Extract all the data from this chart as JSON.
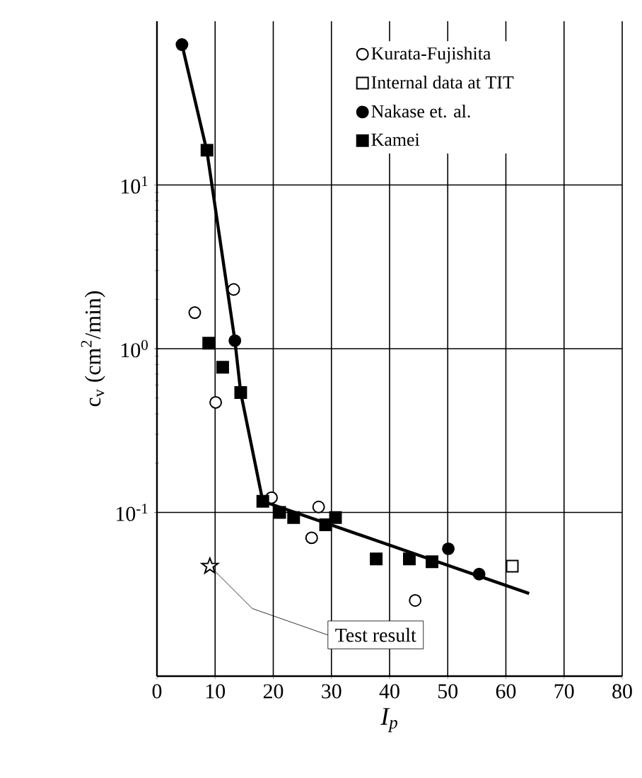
{
  "chart_data": {
    "type": "scatter",
    "xlabel": "I$_{p}$",
    "ylabel": "c$_{v}$ (cm$^{2}$/min)",
    "log": "y",
    "grid": true,
    "legend": "top right",
    "xlim": [
      0,
      80
    ],
    "xticks": [
      0,
      10,
      20,
      30,
      40,
      50,
      60,
      70,
      80
    ],
    "ylim": [
      0.01,
      100
    ],
    "yticks": [
      {
        "value": 0.1,
        "label": "10$^{-1}$"
      },
      {
        "value": 1,
        "label": "10$^{0}$"
      },
      {
        "value": 10,
        "label": "10$^{1}$"
      }
    ],
    "series": [
      {
        "name": "Kurata-Fujishita",
        "color": "#ffffff",
        "marker": "circle",
        "x": [
          13.2,
          6.5,
          10.1,
          19.7,
          27.8,
          26.6,
          44.4
        ],
        "values": [
          2.3,
          1.66,
          0.47,
          0.123,
          0.108,
          0.07,
          0.029
        ]
      },
      {
        "name": "Internal data at TIT",
        "color": "#ffffff",
        "marker": "square",
        "x": [
          61.1
        ],
        "values": [
          0.047
        ]
      },
      {
        "name": "Nakase et. al.",
        "color": "#000000",
        "marker": "circle",
        "x": [
          4.3,
          13.4,
          50.1,
          55.4
        ],
        "values": [
          72,
          1.12,
          0.06,
          0.042
        ]
      },
      {
        "name": "Kamei",
        "color": "#000000",
        "marker": "square",
        "x": [
          8.6,
          8.9,
          11.3,
          14.4,
          18.2,
          21.1,
          23.5,
          29,
          30.7,
          37.7,
          43.4,
          47.3
        ],
        "values": [
          16.3,
          1.08,
          0.77,
          0.54,
          0.117,
          0.1,
          0.093,
          0.084,
          0.093,
          0.052,
          0.052,
          0.05
        ]
      },
      {
        "type": "line",
        "color": "#000000",
        "marker": "none",
        "x": [
          4.3,
          8.6,
          13.4,
          14.4,
          18.2,
          64
        ],
        "values": [
          72,
          16,
          1.12,
          0.54,
          0.117,
          0.032
        ]
      },
      {
        "color": "#ffffff",
        "marker": "star",
        "x": [
          9.1
        ],
        "values": [
          0.047
        ]
      }
    ],
    "annotations": [
      {
        "text": "Test result",
        "x": 9.1,
        "y": 0.047
      }
    ]
  }
}
